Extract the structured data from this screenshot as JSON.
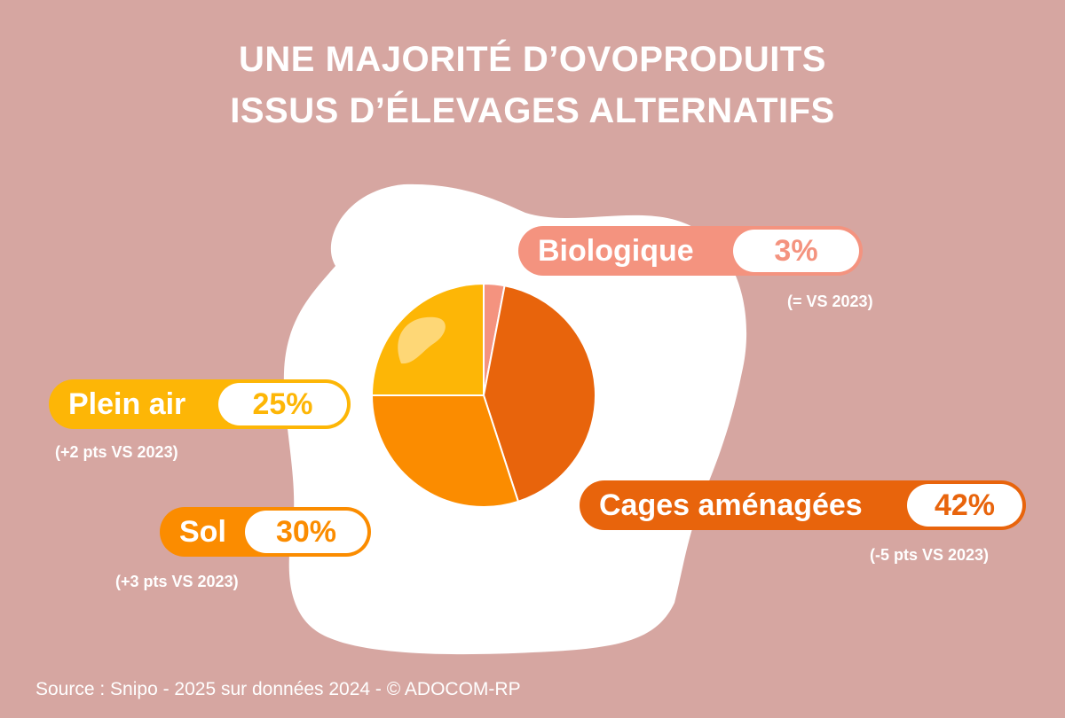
{
  "title": {
    "line1": "UNE MAJORITÉ D’OVOPRODUITS",
    "line2": "ISSUS D’ÉLEVAGES ALTERNATIFS"
  },
  "colors": {
    "background": "#d6a6a1",
    "egg_white": "#ffffff",
    "biologique": "#f4937f",
    "cages": "#e8640c",
    "sol": "#fb8c00",
    "plein_air": "#fdb606"
  },
  "chart_data": {
    "type": "pie",
    "title": "UNE MAJORITÉ D’OVOPRODUITS ISSUS D’ÉLEVAGES ALTERNATIFS",
    "unit": "%",
    "slices": [
      {
        "label": "Biologique",
        "value": 3,
        "value_label": "3%",
        "note": "(= VS 2023)",
        "color": "#f4937f"
      },
      {
        "label": "Cages aménagées",
        "value": 42,
        "value_label": "42%",
        "note": "(-5 pts VS 2023)",
        "color": "#e8640c"
      },
      {
        "label": "Sol",
        "value": 30,
        "value_label": "30%",
        "note": "(+3 pts VS 2023)",
        "color": "#fb8c00"
      },
      {
        "label": "Plein air",
        "value": 25,
        "value_label": "25%",
        "note": "(+2 pts VS 2023)",
        "color": "#fdb606"
      }
    ]
  },
  "source": "Source : Snipo - 2025 sur données 2024 - © ADOCOM-RP"
}
